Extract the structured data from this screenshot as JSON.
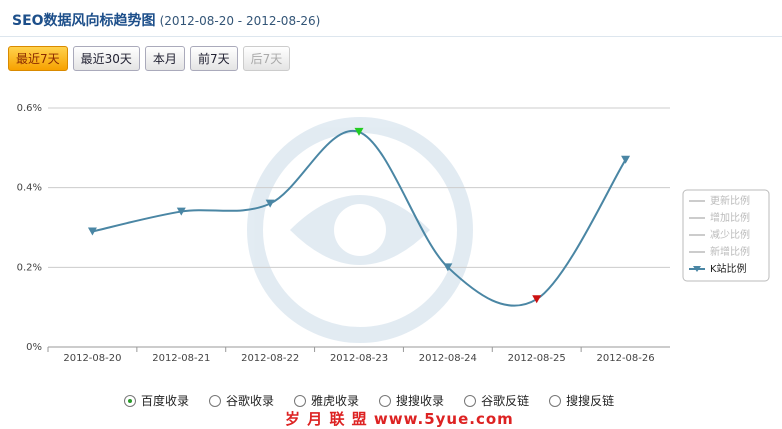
{
  "header": {
    "title": "SEO数据风向标趋势图",
    "date_range": "(2012-08-20 - 2012-08-26)"
  },
  "buttons": [
    {
      "label": "最近7天",
      "state": "active"
    },
    {
      "label": "最近30天",
      "state": "normal"
    },
    {
      "label": "本月",
      "state": "normal"
    },
    {
      "label": "前7天",
      "state": "normal"
    },
    {
      "label": "后7天",
      "state": "disabled"
    }
  ],
  "chart_data": {
    "type": "line",
    "categories": [
      "2012-08-20",
      "2012-08-21",
      "2012-08-22",
      "2012-08-23",
      "2012-08-24",
      "2012-08-25",
      "2012-08-26"
    ],
    "series": [
      {
        "name": "K站比例",
        "color": "#4a86a4",
        "values": [
          0.29,
          0.34,
          0.36,
          0.54,
          0.2,
          0.12,
          0.47
        ]
      }
    ],
    "legend_hidden": [
      "更新比例",
      "增加比例",
      "减少比例",
      "新增比例"
    ],
    "ylim": [
      0,
      0.6
    ],
    "yticks": [
      {
        "value": 0,
        "label": "0%"
      },
      {
        "value": 0.2,
        "label": "0.2%"
      },
      {
        "value": 0.4,
        "label": "0.4%"
      },
      {
        "value": 0.6,
        "label": "0.6%"
      }
    ],
    "grid": true,
    "legend_position": "right",
    "max_color": "#22cc22",
    "min_color": "#cc1111"
  },
  "options": [
    {
      "label": "百度收录",
      "checked": true
    },
    {
      "label": "谷歌收录",
      "checked": false
    },
    {
      "label": "雅虎收录",
      "checked": false
    },
    {
      "label": "搜搜收录",
      "checked": false
    },
    {
      "label": "谷歌反链",
      "checked": false
    },
    {
      "label": "搜搜反链",
      "checked": false
    }
  ],
  "watermark": "岁 月 联 盟  www.5yue.com"
}
